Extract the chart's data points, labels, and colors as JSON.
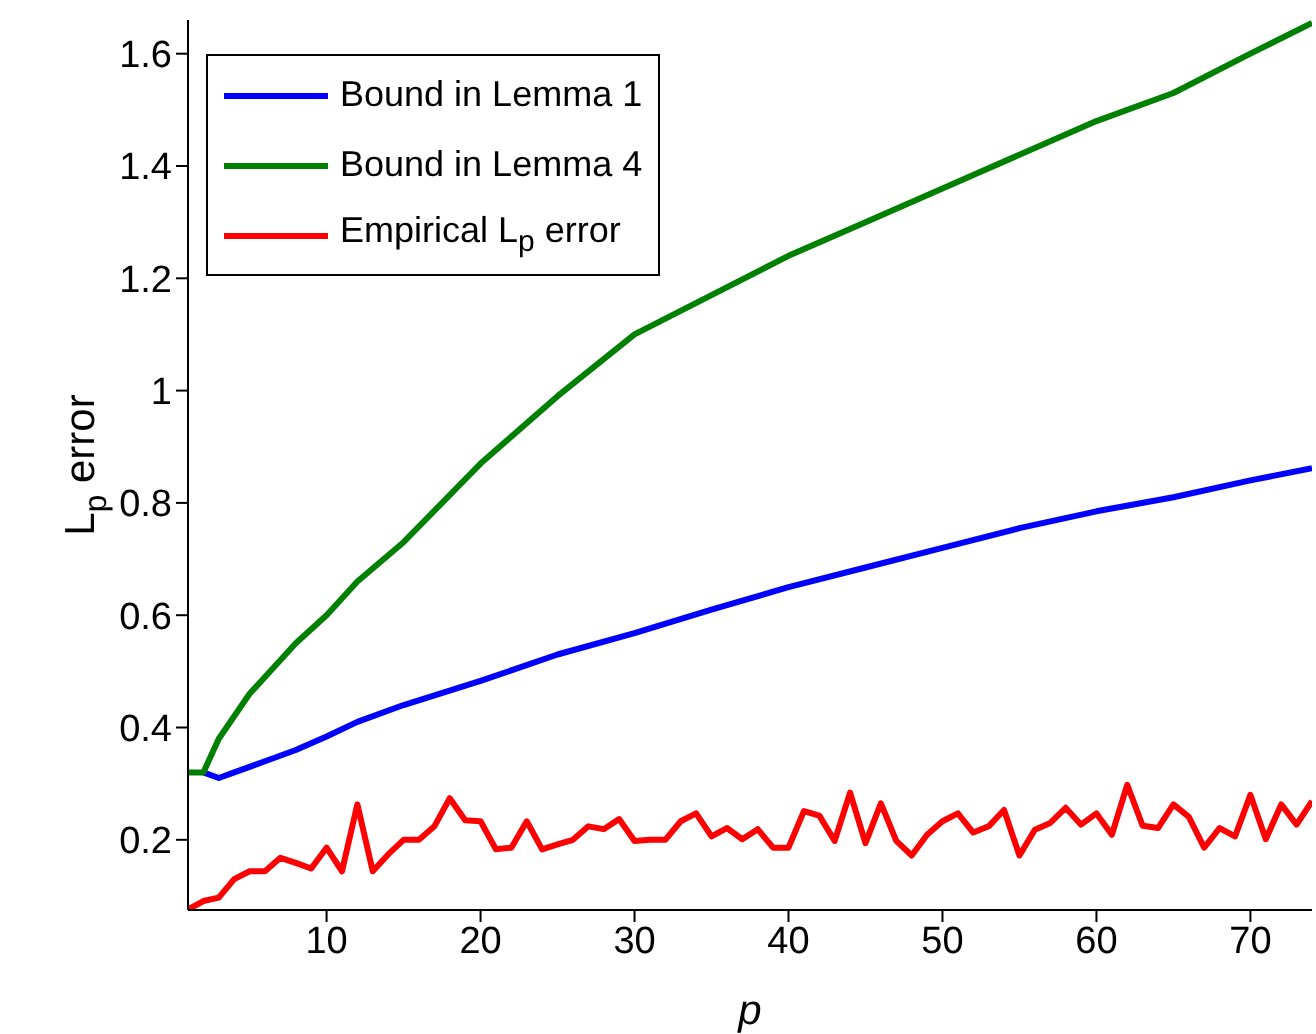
{
  "chart_data": {
    "type": "line",
    "xlabel": "p",
    "ylabel": "L$_{p}$ error",
    "xlim": [
      1,
      74
    ],
    "xticks": [
      10,
      20,
      30,
      40,
      50,
      60,
      70
    ],
    "ylim": [
      0.075,
      1.66
    ],
    "yticks": [
      0.2,
      0.4,
      0.6,
      0.8,
      1,
      1.2,
      1.4,
      1.6
    ],
    "grid": false,
    "legend": "top left",
    "marker": "none",
    "line_style": "solid",
    "series": [
      {
        "name": "Bound in Lemma 1",
        "color": "#0000ff",
        "x": [
          2,
          3,
          4,
          5,
          6,
          8,
          10,
          12,
          15,
          20,
          25,
          30,
          35,
          40,
          45,
          50,
          55,
          60,
          65,
          70,
          74
        ],
        "values": [
          0.32,
          0.31,
          0.32,
          0.33,
          0.34,
          0.36,
          0.384,
          0.41,
          0.44,
          0.483,
          0.53,
          0.568,
          0.61,
          0.65,
          0.685,
          0.72,
          0.755,
          0.785,
          0.81,
          0.84,
          0.862
        ]
      },
      {
        "name": "Bound in Lemma 4",
        "color": "#008000",
        "x": [
          1,
          2,
          3,
          4,
          5,
          6,
          8,
          10,
          12,
          15,
          20,
          25,
          30,
          35,
          40,
          45,
          50,
          55,
          60,
          65,
          70,
          74
        ],
        "values": [
          0.32,
          0.32,
          0.38,
          0.42,
          0.46,
          0.49,
          0.55,
          0.6,
          0.66,
          0.73,
          0.87,
          0.99,
          1.1,
          1.17,
          1.24,
          1.3,
          1.36,
          1.42,
          1.48,
          1.53,
          1.6,
          1.655
        ]
      },
      {
        "name": "Empirical L$_{p}$ error",
        "color": "#ff0000",
        "x": [
          1,
          2,
          3,
          4,
          5,
          6,
          7,
          8,
          9,
          10,
          11,
          12,
          13,
          14,
          15,
          16,
          17,
          18,
          19,
          20,
          21,
          22,
          23,
          24,
          25,
          26,
          27,
          28,
          29,
          30,
          31,
          32,
          33,
          34,
          35,
          36,
          37,
          38,
          39,
          40,
          41,
          42,
          43,
          44,
          45,
          46,
          47,
          48,
          49,
          50,
          51,
          52,
          53,
          54,
          55,
          56,
          57,
          58,
          59,
          60,
          61,
          62,
          63,
          64,
          65,
          66,
          67,
          68,
          69,
          70,
          71,
          72,
          73,
          74
        ],
        "values": [
          0.076,
          0.091,
          0.097,
          0.13,
          0.144,
          0.144,
          0.168,
          0.159,
          0.149,
          0.186,
          0.144,
          0.263,
          0.144,
          0.174,
          0.2,
          0.2,
          0.224,
          0.274,
          0.235,
          0.233,
          0.183,
          0.186,
          0.233,
          0.183,
          0.192,
          0.2,
          0.224,
          0.219,
          0.237,
          0.198,
          0.2,
          0.2,
          0.233,
          0.247,
          0.206,
          0.221,
          0.201,
          0.219,
          0.186,
          0.186,
          0.251,
          0.243,
          0.198,
          0.284,
          0.194,
          0.265,
          0.198,
          0.172,
          0.209,
          0.233,
          0.247,
          0.213,
          0.224,
          0.253,
          0.172,
          0.218,
          0.23,
          0.257,
          0.227,
          0.247,
          0.209,
          0.298,
          0.225,
          0.221,
          0.263,
          0.241,
          0.186,
          0.221,
          0.206,
          0.28,
          0.201,
          0.263,
          0.227,
          0.269
        ]
      }
    ]
  }
}
